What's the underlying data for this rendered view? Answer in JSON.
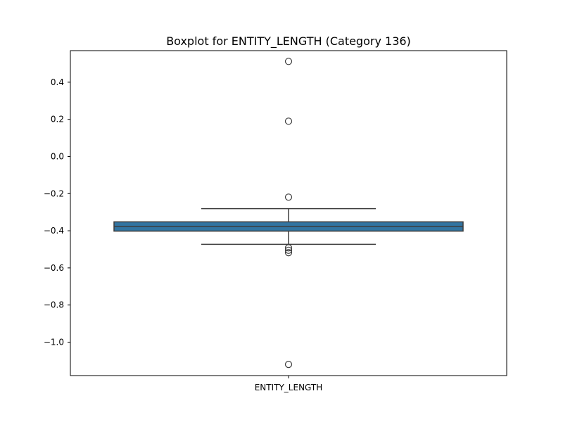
{
  "chart_data": {
    "type": "box",
    "title": "Boxplot for ENTITY_LENGTH (Category 136)",
    "categories": [
      "ENTITY_LENGTH"
    ],
    "ylim": [
      -1.18,
      0.57
    ],
    "yticks": [
      0.4,
      0.2,
      0.0,
      -0.2,
      -0.4,
      -0.6,
      -0.8,
      -1.0
    ],
    "ytick_labels": [
      "0.4",
      "0.2",
      "0.0",
      "−0.2",
      "−0.4",
      "−0.6",
      "−0.8",
      "−1.0"
    ],
    "series": [
      {
        "q1": -0.402,
        "median": -0.377,
        "q3": -0.352,
        "whisker_low": -0.473,
        "whisker_high": -0.281,
        "outliers": [
          0.512,
          0.19,
          -0.219,
          -0.492,
          -0.505,
          -0.518,
          -1.12
        ]
      }
    ],
    "grid": false,
    "colors": {
      "box_fill": "#3274a1",
      "line": "#3d3d3d"
    }
  }
}
